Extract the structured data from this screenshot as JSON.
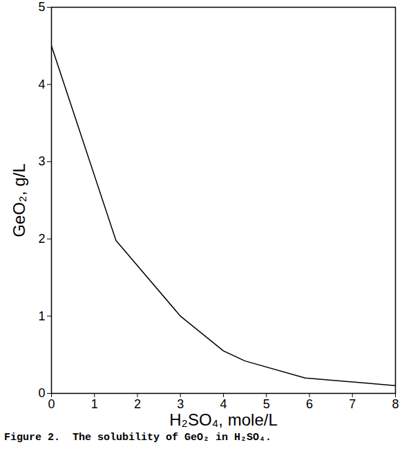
{
  "chart_data": {
    "type": "line",
    "title": "Figure 2.  The solubility of GeO₂ in H₂SO₄.",
    "x_label": "H₂SO₄, mole/L",
    "y_label": "GeO₂, g/L",
    "x": [
      0,
      1.5,
      3,
      4,
      4.5,
      5.9,
      8
    ],
    "values": [
      4.5,
      1.98,
      1.0,
      0.55,
      0.42,
      0.2,
      0.1
    ],
    "color": "#000000",
    "xlim": [
      0,
      8
    ],
    "xticks": [
      0,
      1,
      2,
      3,
      4,
      5,
      6,
      7,
      8
    ],
    "ylim": [
      0,
      5
    ],
    "yticks": [
      0,
      1,
      2,
      3,
      4,
      5
    ],
    "grid": false
  }
}
